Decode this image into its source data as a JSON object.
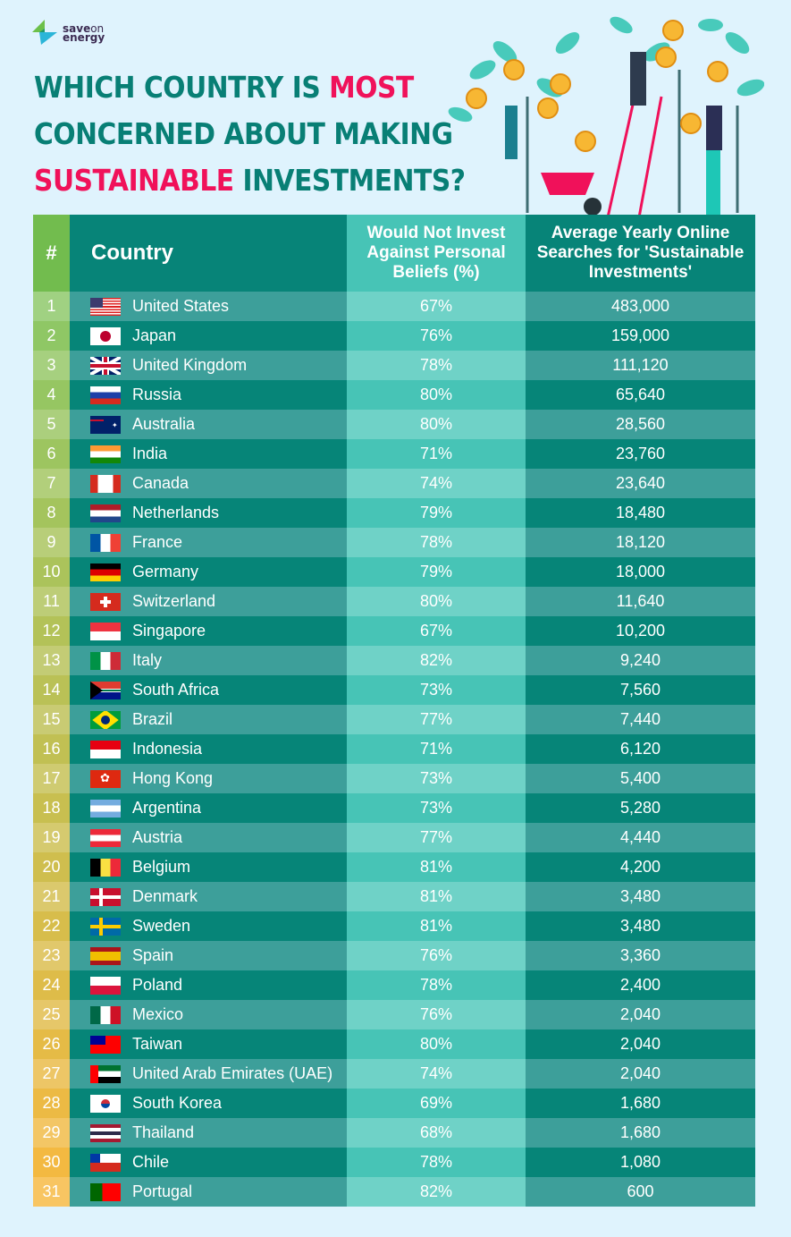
{
  "brand": {
    "logo_text_1": "save",
    "logo_text_2": "on",
    "logo_text_3": "energy"
  },
  "title": {
    "line1_a": "WHICH COUNTRY IS ",
    "line1_b": "MOST",
    "line2": "CONCERNED ABOUT MAKING",
    "line3_a": "SUSTAINABLE",
    "line3_b": " INVESTMENTS?"
  },
  "colors": {
    "teal": "#087f75",
    "pink": "#f0115a",
    "rank_start": "#8bc766",
    "rank_end": "#f7b840"
  },
  "table": {
    "headers": [
      "#",
      "Country",
      "Would Not Invest Against Personal Beliefs (%)",
      "Average Yearly Online Searches for 'Sustainable Investments'"
    ],
    "rows": [
      {
        "rank": "1",
        "country": "United States",
        "flag": "us",
        "pct": "67%",
        "searches": "483,000"
      },
      {
        "rank": "2",
        "country": "Japan",
        "flag": "jp",
        "pct": "76%",
        "searches": "159,000"
      },
      {
        "rank": "3",
        "country": "United Kingdom",
        "flag": "gb",
        "pct": "78%",
        "searches": "111,120"
      },
      {
        "rank": "4",
        "country": "Russia",
        "flag": "ru",
        "pct": "80%",
        "searches": "65,640"
      },
      {
        "rank": "5",
        "country": "Australia",
        "flag": "au",
        "pct": "80%",
        "searches": "28,560"
      },
      {
        "rank": "6",
        "country": "India",
        "flag": "in",
        "pct": "71%",
        "searches": "23,760"
      },
      {
        "rank": "7",
        "country": "Canada",
        "flag": "ca",
        "pct": "74%",
        "searches": "23,640"
      },
      {
        "rank": "8",
        "country": "Netherlands",
        "flag": "nl",
        "pct": "79%",
        "searches": "18,480"
      },
      {
        "rank": "9",
        "country": "France",
        "flag": "fr",
        "pct": "78%",
        "searches": "18,120"
      },
      {
        "rank": "10",
        "country": "Germany",
        "flag": "de",
        "pct": "79%",
        "searches": "18,000"
      },
      {
        "rank": "11",
        "country": "Switzerland",
        "flag": "ch",
        "pct": "80%",
        "searches": "11,640"
      },
      {
        "rank": "12",
        "country": "Singapore",
        "flag": "sg",
        "pct": "67%",
        "searches": "10,200"
      },
      {
        "rank": "13",
        "country": "Italy",
        "flag": "it",
        "pct": "82%",
        "searches": "9,240"
      },
      {
        "rank": "14",
        "country": "South Africa",
        "flag": "za",
        "pct": "73%",
        "searches": "7,560"
      },
      {
        "rank": "15",
        "country": "Brazil",
        "flag": "br",
        "pct": "77%",
        "searches": "7,440"
      },
      {
        "rank": "16",
        "country": "Indonesia",
        "flag": "id",
        "pct": "71%",
        "searches": "6,120"
      },
      {
        "rank": "17",
        "country": "Hong Kong",
        "flag": "hk",
        "pct": "73%",
        "searches": "5,400"
      },
      {
        "rank": "18",
        "country": "Argentina",
        "flag": "ar",
        "pct": "73%",
        "searches": "5,280"
      },
      {
        "rank": "19",
        "country": "Austria",
        "flag": "at",
        "pct": "77%",
        "searches": "4,440"
      },
      {
        "rank": "20",
        "country": "Belgium",
        "flag": "be",
        "pct": "81%",
        "searches": "4,200"
      },
      {
        "rank": "21",
        "country": "Denmark",
        "flag": "dk",
        "pct": "81%",
        "searches": "3,480"
      },
      {
        "rank": "22",
        "country": "Sweden",
        "flag": "se",
        "pct": "81%",
        "searches": "3,480"
      },
      {
        "rank": "23",
        "country": "Spain",
        "flag": "es",
        "pct": "76%",
        "searches": "3,360"
      },
      {
        "rank": "24",
        "country": "Poland",
        "flag": "pl",
        "pct": "78%",
        "searches": "2,400"
      },
      {
        "rank": "25",
        "country": "Mexico",
        "flag": "mx",
        "pct": "76%",
        "searches": "2,040"
      },
      {
        "rank": "26",
        "country": "Taiwan",
        "flag": "tw",
        "pct": "80%",
        "searches": "2,040"
      },
      {
        "rank": "27",
        "country": "United Arab Emirates (UAE)",
        "flag": "ae",
        "pct": "74%",
        "searches": "2,040"
      },
      {
        "rank": "28",
        "country": "South Korea",
        "flag": "kr",
        "pct": "69%",
        "searches": "1,680"
      },
      {
        "rank": "29",
        "country": "Thailand",
        "flag": "th",
        "pct": "68%",
        "searches": "1,680"
      },
      {
        "rank": "30",
        "country": "Chile",
        "flag": "cl",
        "pct": "78%",
        "searches": "1,080"
      },
      {
        "rank": "31",
        "country": "Portugal",
        "flag": "pt",
        "pct": "82%",
        "searches": "600"
      }
    ]
  }
}
